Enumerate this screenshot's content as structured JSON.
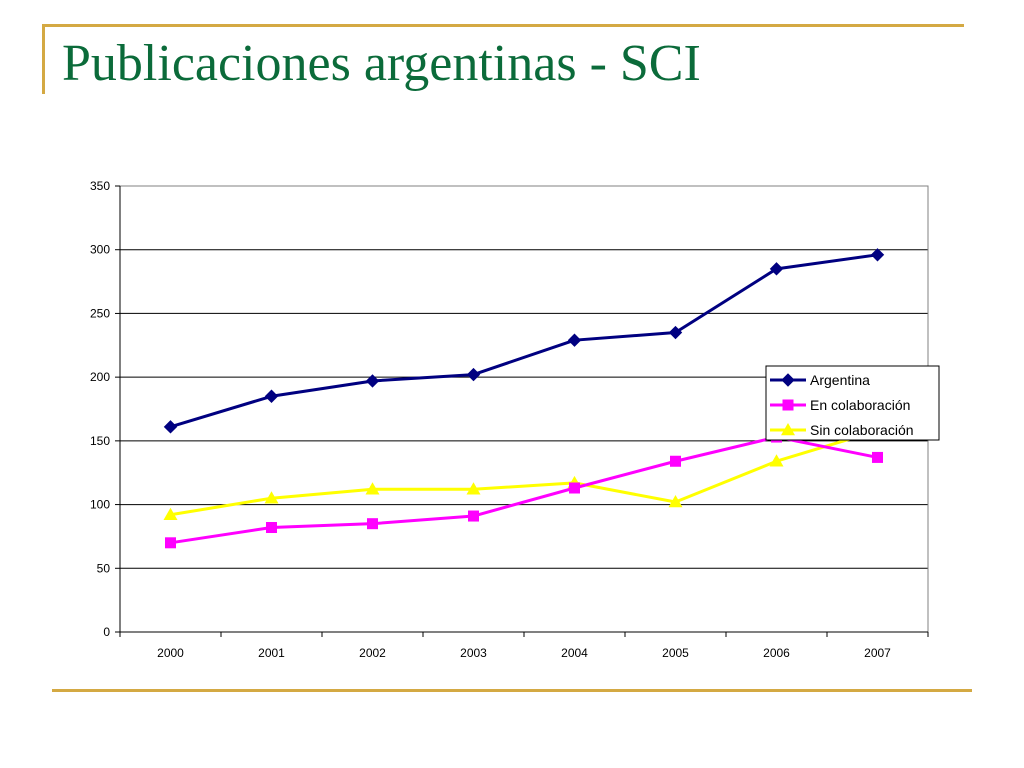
{
  "slide": {
    "title": "Publicaciones argentinas - SCI"
  },
  "colors": {
    "accent_rule": "#d4a943",
    "title": "#0b6b3a",
    "grid": "#000000",
    "plot_border": "#808080"
  },
  "chart_data": {
    "type": "line",
    "title": "",
    "xlabel": "",
    "ylabel": "",
    "categories": [
      "2000",
      "2001",
      "2002",
      "2003",
      "2004",
      "2005",
      "2006",
      "2007"
    ],
    "ylim": [
      0,
      350
    ],
    "yticks": [
      0,
      50,
      100,
      150,
      200,
      250,
      300,
      350
    ],
    "grid": true,
    "legend_position": "right",
    "series": [
      {
        "name": "Argentina",
        "color": "#000080",
        "marker": "diamond",
        "values": [
          161,
          185,
          197,
          202,
          229,
          235,
          285,
          296
        ]
      },
      {
        "name": "En colaboración",
        "color": "#ff00ff",
        "marker": "square",
        "values": [
          70,
          82,
          85,
          91,
          113,
          134,
          153,
          137
        ]
      },
      {
        "name": "Sin colaboración",
        "color": "#ffff00",
        "marker": "triangle",
        "values": [
          92,
          105,
          112,
          112,
          117,
          102,
          134,
          158
        ]
      }
    ]
  }
}
